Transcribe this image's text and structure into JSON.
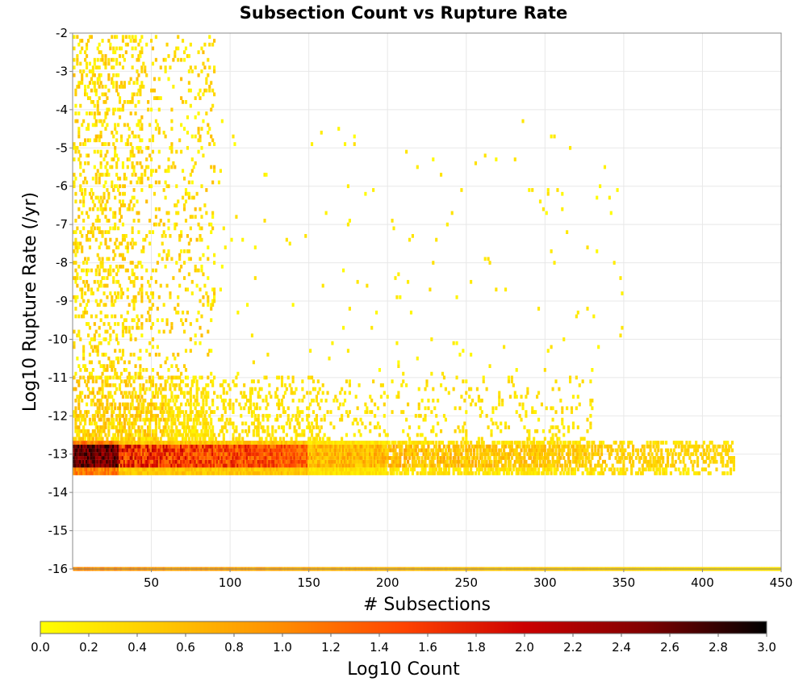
{
  "chart_data": {
    "type": "heatmap",
    "title": "Subsection Count vs Rupture Rate",
    "xlabel": "# Subsections",
    "ylabel": "Log10 Rupture Rate (/yr)",
    "colorbar_label": "Log10 Count",
    "xlim": [
      0,
      450
    ],
    "ylim": [
      -16,
      -2
    ],
    "x_ticks": [
      "50",
      "100",
      "150",
      "200",
      "250",
      "300",
      "350",
      "400",
      "450"
    ],
    "y_ticks": [
      "-2",
      "-3",
      "-4",
      "-5",
      "-6",
      "-7",
      "-8",
      "-9",
      "-10",
      "-11",
      "-12",
      "-13",
      "-14",
      "-15",
      "-16"
    ],
    "colorbar_range": [
      0.0,
      3.0
    ],
    "colorbar_ticks": [
      "0.0",
      "0.2",
      "0.4",
      "0.6",
      "0.8",
      "1.0",
      "1.2",
      "1.4",
      "1.6",
      "1.8",
      "2.0",
      "2.2",
      "2.4",
      "2.6",
      "2.8",
      "3.0"
    ],
    "colormap": [
      "#ffff00",
      "#ffc800",
      "#ff8c00",
      "#ff4400",
      "#cc0000",
      "#800000",
      "#000000"
    ],
    "grid": true,
    "bin_width_x": 1,
    "bin_height_y": 0.1,
    "regions": [
      {
        "x": [
          1,
          450
        ],
        "y": [
          -16.1,
          -15.9
        ],
        "log10_count": [
          0.3,
          1.2
        ],
        "note": "band of zero-rate ruptures"
      },
      {
        "x": [
          1,
          420
        ],
        "y": [
          -13.5,
          -12.7
        ],
        "log10_count": [
          0.2,
          2.9
        ],
        "note": "dense band, darkest at small x"
      },
      {
        "x": [
          1,
          330
        ],
        "y": [
          -12.6,
          -11.0
        ],
        "log10_count": [
          0.0,
          1.2
        ]
      },
      {
        "x": [
          1,
          90
        ],
        "y": [
          -11.0,
          -2.1
        ],
        "log10_count": [
          0.0,
          0.8
        ]
      },
      {
        "x": [
          90,
          350
        ],
        "y": [
          -11.0,
          -4.2
        ],
        "log10_count": [
          0.0,
          0.3
        ],
        "note": "sparse isolated bins"
      }
    ]
  }
}
